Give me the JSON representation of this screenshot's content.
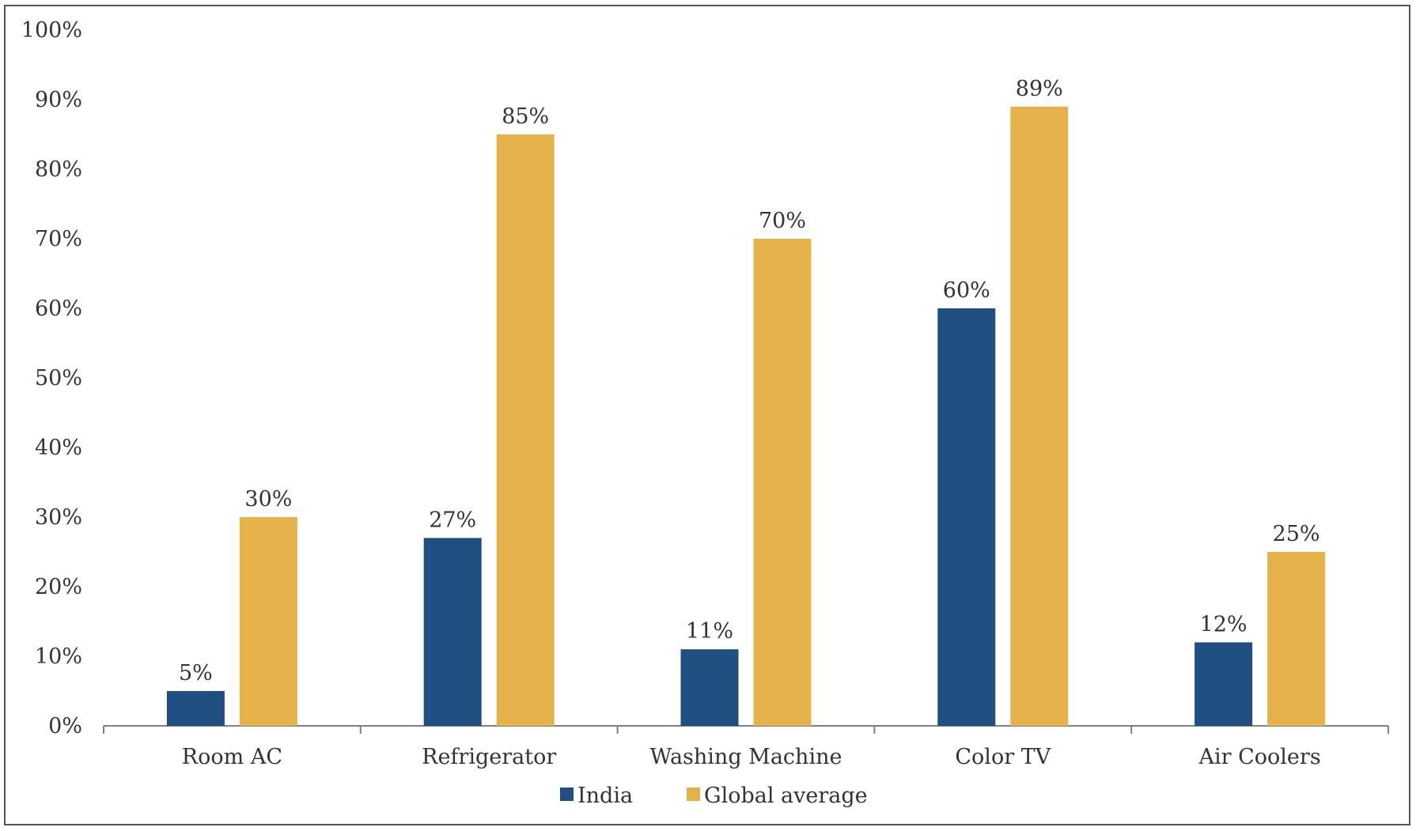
{
  "chart_data": {
    "type": "bar",
    "categories": [
      "Room AC",
      "Refrigerator",
      "Washing Machine",
      "Color TV",
      "Air Coolers"
    ],
    "series": [
      {
        "name": "India",
        "values": [
          5,
          27,
          11,
          60,
          12
        ],
        "color": "#1f4e80"
      },
      {
        "name": "Global average",
        "values": [
          30,
          85,
          70,
          89,
          25
        ],
        "color": "#e5b24b"
      }
    ],
    "ylim": [
      0,
      100
    ],
    "yticks": [
      "0%",
      "10%",
      "20%",
      "30%",
      "40%",
      "50%",
      "60%",
      "70%",
      "80%",
      "90%",
      "100%"
    ],
    "data_label_suffix": "%",
    "grid": false,
    "legend_position": "bottom"
  }
}
